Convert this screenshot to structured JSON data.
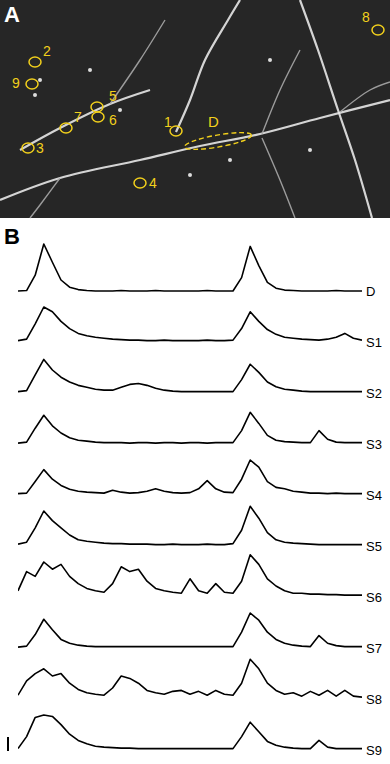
{
  "panel_labels": [
    "A",
    "B"
  ],
  "image": {
    "roi_labels": [
      "1",
      "2",
      "3",
      "4",
      "5",
      "6",
      "7",
      "8",
      "9"
    ],
    "dendrite_label": "D"
  },
  "chart_data": {
    "type": "line",
    "color": "#000000",
    "tick_labels": false,
    "xlim": [
      0,
      100
    ],
    "ylim": [
      0,
      1
    ],
    "x": [
      0,
      2.5,
      5,
      7.5,
      10,
      12.5,
      15,
      17.5,
      20,
      22.5,
      25,
      27.5,
      30,
      32.5,
      35,
      37.5,
      40,
      42.5,
      45,
      47.5,
      50,
      52.5,
      55,
      57.5,
      60,
      62.5,
      65,
      67.5,
      70,
      72.5,
      75,
      77.5,
      80,
      82.5,
      85,
      87.5,
      90,
      92.5,
      95,
      97.5,
      100
    ],
    "series": [
      {
        "name": "D",
        "values": [
          0.02,
          0.03,
          0.35,
          1.0,
          0.62,
          0.25,
          0.1,
          0.05,
          0.03,
          0.02,
          0.02,
          0.02,
          0.03,
          0.02,
          0.02,
          0.02,
          0.03,
          0.02,
          0.02,
          0.02,
          0.02,
          0.02,
          0.03,
          0.02,
          0.02,
          0.02,
          0.3,
          0.95,
          0.55,
          0.2,
          0.08,
          0.04,
          0.03,
          0.02,
          0.02,
          0.02,
          0.02,
          0.03,
          0.02,
          0.02,
          0.02
        ]
      },
      {
        "name": "S1",
        "values": [
          0.05,
          0.08,
          0.4,
          0.75,
          0.65,
          0.45,
          0.3,
          0.2,
          0.15,
          0.12,
          0.1,
          0.08,
          0.07,
          0.06,
          0.06,
          0.05,
          0.05,
          0.06,
          0.05,
          0.05,
          0.05,
          0.05,
          0.06,
          0.05,
          0.05,
          0.06,
          0.3,
          0.65,
          0.45,
          0.28,
          0.18,
          0.12,
          0.1,
          0.08,
          0.07,
          0.06,
          0.08,
          0.12,
          0.2,
          0.1,
          0.06
        ]
      },
      {
        "name": "S2",
        "values": [
          0.05,
          0.07,
          0.4,
          0.72,
          0.5,
          0.35,
          0.25,
          0.18,
          0.14,
          0.1,
          0.08,
          0.08,
          0.14,
          0.2,
          0.22,
          0.18,
          0.12,
          0.08,
          0.06,
          0.05,
          0.05,
          0.05,
          0.05,
          0.05,
          0.05,
          0.05,
          0.3,
          0.62,
          0.45,
          0.25,
          0.15,
          0.1,
          0.08,
          0.06,
          0.05,
          0.05,
          0.05,
          0.05,
          0.05,
          0.05,
          0.05
        ]
      },
      {
        "name": "S3",
        "values": [
          0.04,
          0.06,
          0.35,
          0.62,
          0.4,
          0.25,
          0.15,
          0.1,
          0.08,
          0.06,
          0.05,
          0.05,
          0.05,
          0.04,
          0.05,
          0.05,
          0.04,
          0.05,
          0.05,
          0.04,
          0.05,
          0.05,
          0.04,
          0.05,
          0.05,
          0.05,
          0.3,
          0.68,
          0.45,
          0.2,
          0.1,
          0.07,
          0.06,
          0.05,
          0.05,
          0.3,
          0.12,
          0.06,
          0.05,
          0.05,
          0.05
        ]
      },
      {
        "name": "S4",
        "values": [
          0.05,
          0.06,
          0.3,
          0.55,
          0.35,
          0.22,
          0.14,
          0.1,
          0.08,
          0.07,
          0.06,
          0.12,
          0.08,
          0.06,
          0.07,
          0.1,
          0.15,
          0.1,
          0.07,
          0.06,
          0.07,
          0.15,
          0.32,
          0.15,
          0.08,
          0.07,
          0.35,
          0.75,
          0.6,
          0.3,
          0.18,
          0.15,
          0.1,
          0.08,
          0.06,
          0.06,
          0.05,
          0.06,
          0.05,
          0.05,
          0.05
        ]
      },
      {
        "name": "S5",
        "values": [
          0.06,
          0.1,
          0.4,
          0.75,
          0.55,
          0.4,
          0.25,
          0.15,
          0.12,
          0.1,
          0.08,
          0.07,
          0.07,
          0.06,
          0.06,
          0.06,
          0.05,
          0.05,
          0.06,
          0.05,
          0.05,
          0.05,
          0.06,
          0.05,
          0.05,
          0.07,
          0.35,
          0.85,
          0.6,
          0.3,
          0.15,
          0.1,
          0.08,
          0.07,
          0.06,
          0.05,
          0.05,
          0.05,
          0.05,
          0.05,
          0.05
        ]
      },
      {
        "name": "S6",
        "values": [
          0.15,
          0.55,
          0.45,
          0.75,
          0.6,
          0.7,
          0.45,
          0.3,
          0.2,
          0.15,
          0.12,
          0.3,
          0.65,
          0.55,
          0.6,
          0.35,
          0.2,
          0.15,
          0.12,
          0.1,
          0.4,
          0.15,
          0.1,
          0.3,
          0.12,
          0.1,
          0.35,
          0.9,
          0.7,
          0.4,
          0.25,
          0.15,
          0.1,
          0.1,
          0.08,
          0.08,
          0.07,
          0.07,
          0.06,
          0.06,
          0.06
        ]
      },
      {
        "name": "S7",
        "values": [
          0.04,
          0.06,
          0.3,
          0.62,
          0.4,
          0.2,
          0.12,
          0.08,
          0.06,
          0.05,
          0.05,
          0.05,
          0.05,
          0.05,
          0.05,
          0.05,
          0.05,
          0.05,
          0.05,
          0.05,
          0.05,
          0.05,
          0.05,
          0.05,
          0.05,
          0.05,
          0.35,
          0.75,
          0.6,
          0.35,
          0.2,
          0.12,
          0.08,
          0.06,
          0.05,
          0.28,
          0.12,
          0.07,
          0.05,
          0.05,
          0.05
        ]
      },
      {
        "name": "S8",
        "values": [
          0.1,
          0.4,
          0.55,
          0.65,
          0.5,
          0.55,
          0.35,
          0.22,
          0.15,
          0.12,
          0.1,
          0.25,
          0.5,
          0.45,
          0.35,
          0.2,
          0.15,
          0.12,
          0.18,
          0.2,
          0.12,
          0.18,
          0.1,
          0.2,
          0.12,
          0.1,
          0.35,
          0.85,
          0.65,
          0.35,
          0.2,
          0.12,
          0.15,
          0.08,
          0.18,
          0.1,
          0.2,
          0.08,
          0.2,
          0.08,
          0.06
        ]
      },
      {
        "name": "S9",
        "values": [
          0.05,
          0.3,
          0.7,
          0.75,
          0.72,
          0.55,
          0.35,
          0.22,
          0.15,
          0.1,
          0.08,
          0.07,
          0.06,
          0.06,
          0.05,
          0.05,
          0.05,
          0.05,
          0.05,
          0.05,
          0.05,
          0.05,
          0.05,
          0.05,
          0.05,
          0.05,
          0.3,
          0.6,
          0.4,
          0.2,
          0.12,
          0.08,
          0.06,
          0.05,
          0.05,
          0.22,
          0.08,
          0.05,
          0.05,
          0.05,
          0.05
        ]
      }
    ]
  }
}
